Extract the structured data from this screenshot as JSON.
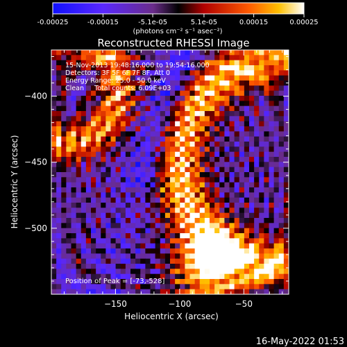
{
  "colorbar": {
    "tick_labels": [
      "-0.00025",
      "-0.00015",
      "-5.1e-05",
      "5.1e-05",
      "0.00015",
      "0.00025"
    ],
    "tick_values": [
      -0.00025,
      -0.00015,
      -5.1e-05,
      5.1e-05,
      0.00015,
      0.00025
    ],
    "range": [
      -0.00025,
      0.00025
    ],
    "unit_label": "(photons cm⁻² s⁻¹ asec⁻²)",
    "colormap": "rhessi-bipolar (blue-purple-black-red-orange-yellow-white)"
  },
  "chart_data": {
    "type": "heatmap",
    "title": "Reconstructed RHESSI Image",
    "xlabel": "Heliocentric X (arcsec)",
    "ylabel": "Heliocentric Y (arcsec)",
    "xlim": [
      -200,
      -15
    ],
    "ylim": [
      -550,
      -365
    ],
    "xticks": [
      -150,
      -100,
      -50
    ],
    "yticks": [
      -400,
      -450,
      -500
    ],
    "annotations": [
      "15-Nov-2013 19:48:16.000 to 19:54:16.000",
      "Detectors: 3F 5F 6F 7F 8F, Att 0",
      "Energy Range: 25.0 - 50.0 keV",
      "Clean     Total counts: 6.09E+03"
    ],
    "peak_label": "Position of Peak = [-73,-528]",
    "peak_position": [
      -73,
      -528
    ]
  },
  "timestamp": "16-May-2022 01:53"
}
